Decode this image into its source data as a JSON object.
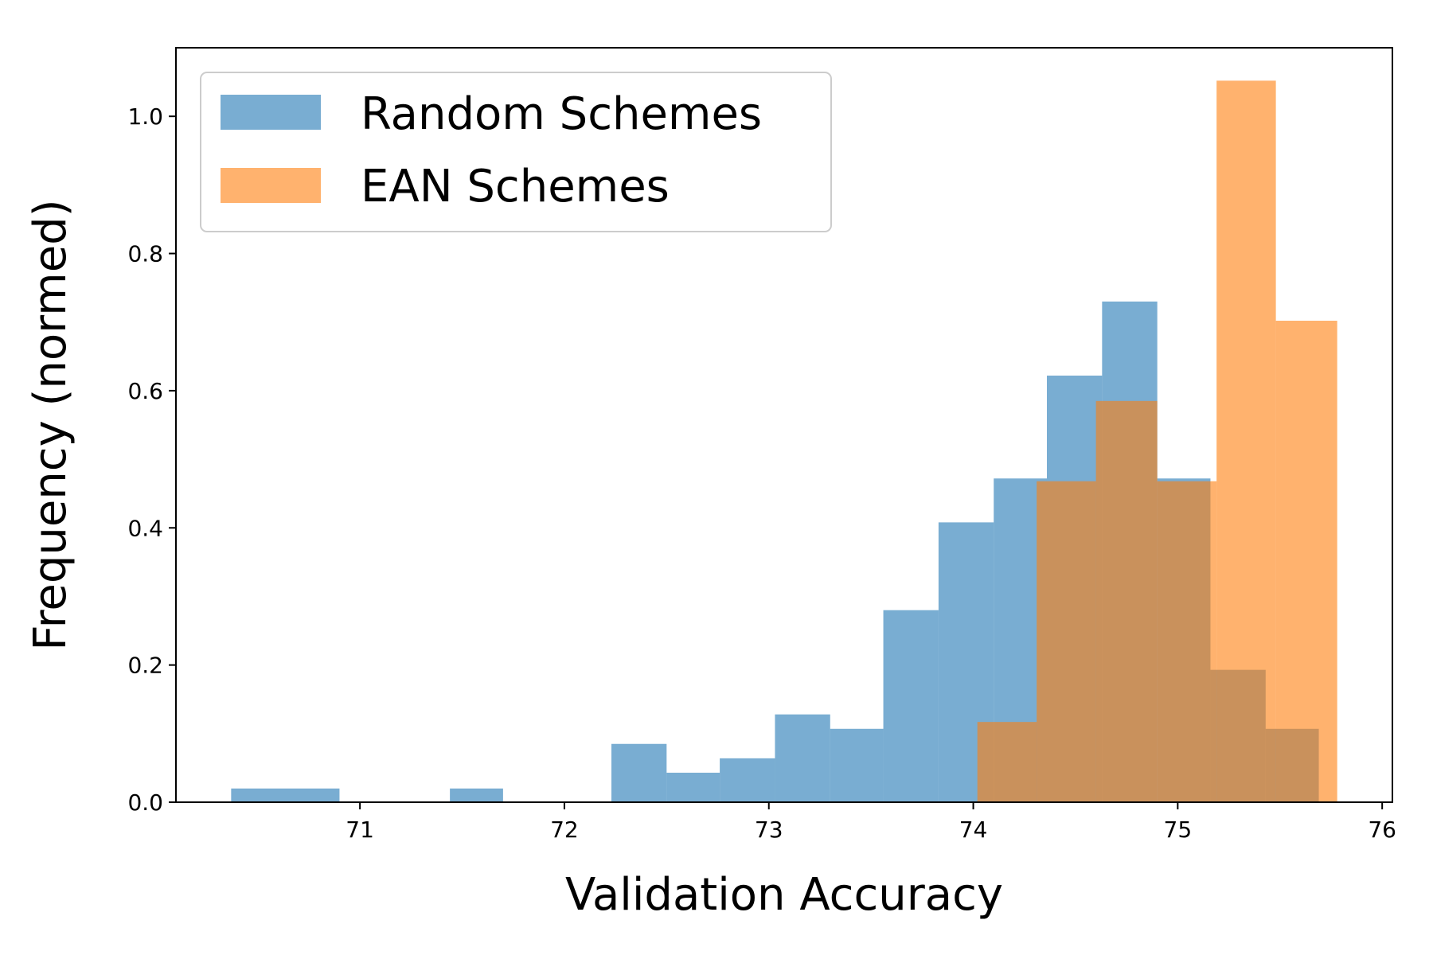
{
  "chart_data": {
    "type": "bar",
    "subtype": "overlapping-histogram",
    "title": "",
    "xlabel": "Validation Accuracy",
    "ylabel": "Frequency (normed)",
    "xlim": [
      70.1,
      76.05
    ],
    "ylim": [
      0.0,
      1.1
    ],
    "x_ticks": [
      71,
      72,
      73,
      74,
      75,
      76
    ],
    "y_ticks": [
      0.0,
      0.2,
      0.4,
      0.6,
      0.8,
      1.0
    ],
    "x_tick_labels": [
      "71",
      "72",
      "73",
      "74",
      "75",
      "76"
    ],
    "y_tick_labels": [
      "0.0",
      "0.2",
      "0.4",
      "0.6",
      "0.8",
      "1.0"
    ],
    "grid": false,
    "legend_position": "top-left",
    "series": [
      {
        "name": "Random Schemes",
        "color": "#1f77b4",
        "opacity": 0.6,
        "bins": [
          {
            "x0": 70.37,
            "x1": 70.9,
            "value": 0.02
          },
          {
            "x0": 70.9,
            "x1": 71.44,
            "value": 0.0
          },
          {
            "x0": 71.44,
            "x1": 71.7,
            "value": 0.02
          },
          {
            "x0": 71.7,
            "x1": 72.23,
            "value": 0.0
          },
          {
            "x0": 72.23,
            "x1": 72.5,
            "value": 0.085
          },
          {
            "x0": 72.5,
            "x1": 72.76,
            "value": 0.043
          },
          {
            "x0": 72.76,
            "x1": 73.03,
            "value": 0.064
          },
          {
            "x0": 73.03,
            "x1": 73.3,
            "value": 0.128
          },
          {
            "x0": 73.3,
            "x1": 73.56,
            "value": 0.107
          },
          {
            "x0": 73.56,
            "x1": 73.83,
            "value": 0.28
          },
          {
            "x0": 73.83,
            "x1": 74.1,
            "value": 0.408
          },
          {
            "x0": 74.1,
            "x1": 74.36,
            "value": 0.472
          },
          {
            "x0": 74.36,
            "x1": 74.63,
            "value": 0.622
          },
          {
            "x0": 74.63,
            "x1": 74.9,
            "value": 0.73
          },
          {
            "x0": 74.9,
            "x1": 75.16,
            "value": 0.472
          },
          {
            "x0": 75.16,
            "x1": 75.43,
            "value": 0.193
          },
          {
            "x0": 75.43,
            "x1": 75.69,
            "value": 0.107
          }
        ]
      },
      {
        "name": "EAN Schemes",
        "color": "#ff7f0e",
        "opacity": 0.6,
        "bins": [
          {
            "x0": 74.02,
            "x1": 74.31,
            "value": 0.117
          },
          {
            "x0": 74.31,
            "x1": 74.6,
            "value": 0.468
          },
          {
            "x0": 74.6,
            "x1": 74.9,
            "value": 0.585
          },
          {
            "x0": 74.9,
            "x1": 75.19,
            "value": 0.468
          },
          {
            "x0": 75.19,
            "x1": 75.48,
            "value": 1.052
          },
          {
            "x0": 75.48,
            "x1": 75.78,
            "value": 0.702
          }
        ]
      }
    ]
  }
}
